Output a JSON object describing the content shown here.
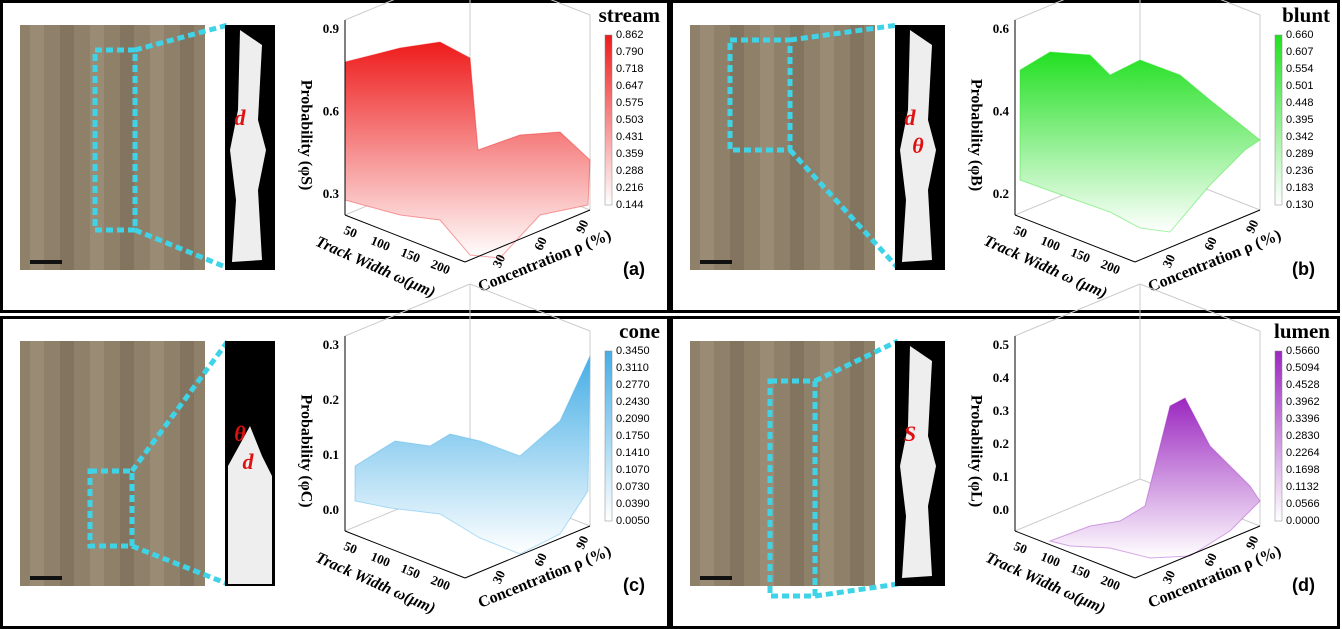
{
  "panels": [
    {
      "title": "stream",
      "tag": "(a)",
      "color": "#ee1b1b",
      "colorbar": [
        "0.862",
        "0.790",
        "0.718",
        "0.647",
        "0.575",
        "0.503",
        "0.431",
        "0.359",
        "0.288",
        "0.216",
        "0.144"
      ],
      "z_label": "Probability (φS)",
      "z_ticks": [
        "0.3",
        "0.6",
        "0.9"
      ],
      "x_label": "Track Width ω(μm)",
      "x_ticks": [
        "50",
        "100",
        "150",
        "200"
      ],
      "y_label": "Concentration ρ (%)",
      "y_ticks": [
        "30",
        "60",
        "90"
      ],
      "mask_labels": [
        "d"
      ]
    },
    {
      "title": "blunt",
      "tag": "(b)",
      "color": "#22e022",
      "colorbar": [
        "0.660",
        "0.607",
        "0.554",
        "0.501",
        "0.448",
        "0.395",
        "0.342",
        "0.289",
        "0.236",
        "0.183",
        "0.130"
      ],
      "z_label": "Probability (φB)",
      "z_ticks": [
        "0.2",
        "0.4",
        "0.6"
      ],
      "x_label": "Track Width ω (μm)",
      "x_ticks": [
        "50",
        "100",
        "150",
        "200"
      ],
      "y_label": "Concentration ρ (%)",
      "y_ticks": [
        "30",
        "60",
        "90"
      ],
      "mask_labels": [
        "d",
        "θ"
      ]
    },
    {
      "title": "cone",
      "tag": "(c)",
      "color": "#45aee6",
      "colorbar": [
        "0.3450",
        "0.3110",
        "0.2770",
        "0.2430",
        "0.2090",
        "0.1750",
        "0.1410",
        "0.1070",
        "0.0730",
        "0.0390",
        "0.0050"
      ],
      "z_label": "Probability (φC)",
      "z_ticks": [
        "0.0",
        "0.1",
        "0.2",
        "0.3"
      ],
      "x_label": "Track Width ω(μm)",
      "x_ticks": [
        "50",
        "100",
        "150",
        "200"
      ],
      "y_label": "Concentration ρ (%)",
      "y_ticks": [
        "30",
        "60",
        "90"
      ],
      "mask_labels": [
        "θ",
        "d"
      ]
    },
    {
      "title": "lumen",
      "tag": "(d)",
      "color": "#9b27c0",
      "colorbar": [
        "0.5660",
        "0.5094",
        "0.4528",
        "0.3962",
        "0.3396",
        "0.2830",
        "0.2264",
        "0.1698",
        "0.1132",
        "0.0566",
        "0.0000"
      ],
      "z_label": "Probability (φL)",
      "z_ticks": [
        "0.0",
        "0.1",
        "0.2",
        "0.3",
        "0.4",
        "0.5"
      ],
      "x_label": "Track Width ω(μm)",
      "x_ticks": [
        "50",
        "100",
        "150",
        "200"
      ],
      "y_label": "Concentration ρ (%)",
      "y_ticks": [
        "30",
        "60",
        "90"
      ],
      "mask_labels": [
        "S"
      ]
    }
  ]
}
